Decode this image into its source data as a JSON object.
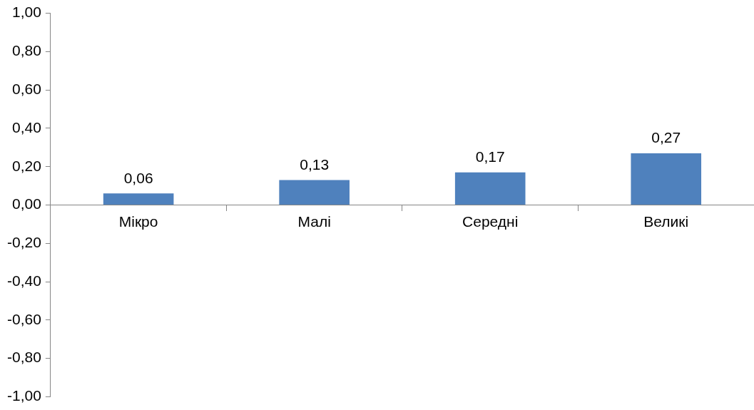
{
  "chart_data": {
    "type": "bar",
    "categories": [
      "Мікро",
      "Малі",
      "Середні",
      "Великі"
    ],
    "values": [
      0.06,
      0.13,
      0.17,
      0.27
    ],
    "value_labels": [
      "0,06",
      "0,13",
      "0,17",
      "0,27"
    ],
    "color": "#4f81bd",
    "ylim": [
      -1,
      1
    ],
    "yticks": [
      {
        "value": -1,
        "label": "-1,00"
      },
      {
        "value": -0.8,
        "label": "-0,80"
      },
      {
        "value": -0.6,
        "label": "-0,60"
      },
      {
        "value": -0.4,
        "label": "-0,40"
      },
      {
        "value": -0.2,
        "label": "-0,20"
      },
      {
        "value": 0,
        "label": "0,00"
      },
      {
        "value": 0.2,
        "label": "0,20"
      },
      {
        "value": 0.4,
        "label": "0,40"
      },
      {
        "value": 0.6,
        "label": "0,60"
      },
      {
        "value": 0.8,
        "label": "0,80"
      },
      {
        "value": 1,
        "label": "1,00"
      }
    ],
    "grid": false,
    "legend": false
  }
}
